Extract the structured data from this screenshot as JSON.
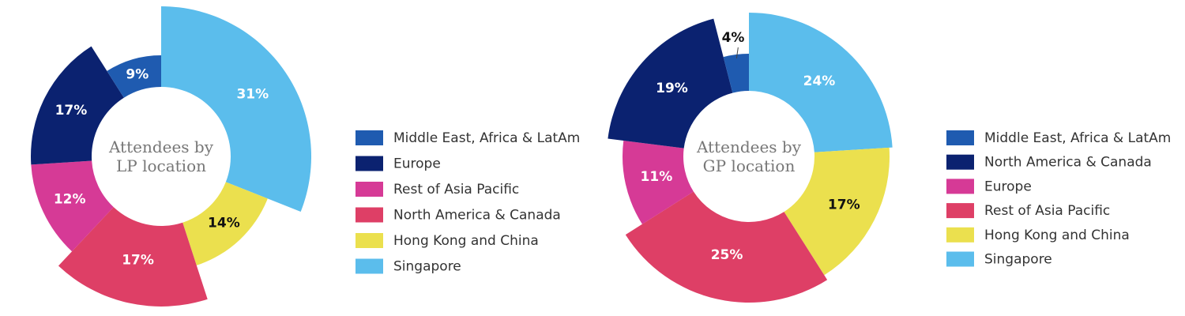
{
  "chart_data": [
    {
      "type": "pie",
      "variant": "variable-radius donut",
      "center_title": [
        "Attendees by",
        "LP location"
      ],
      "legend": [
        {
          "name": "Middle East, Africa & LatAm",
          "color": "#1f5bb0"
        },
        {
          "name": "Europe",
          "color": "#0b2270"
        },
        {
          "name": "Rest of Asia Pacific",
          "color": "#d63a96"
        },
        {
          "name": "North America & Canada",
          "color": "#de3f66"
        },
        {
          "name": "Hong Kong and China",
          "color": "#ebe04e"
        },
        {
          "name": "Singapore",
          "color": "#5bbdec"
        }
      ],
      "slices": [
        {
          "name": "Singapore",
          "value": 31,
          "label": "31%",
          "color": "#5bbdec"
        },
        {
          "name": "Hong Kong and China",
          "value": 14,
          "label": "14%",
          "color": "#ebe04e"
        },
        {
          "name": "North America & Canada",
          "value": 17,
          "label": "17%",
          "color": "#de3f66"
        },
        {
          "name": "Rest of Asia Pacific",
          "value": 12,
          "label": "12%",
          "color": "#d63a96"
        },
        {
          "name": "Europe",
          "value": 17,
          "label": "17%",
          "color": "#0b2270"
        },
        {
          "name": "Middle East, Africa & LatAm",
          "value": 9,
          "label": "9%",
          "color": "#1f5bb0"
        }
      ]
    },
    {
      "type": "pie",
      "variant": "variable-radius donut",
      "center_title": [
        "Attendees by",
        "GP location"
      ],
      "legend": [
        {
          "name": "Middle East, Africa & LatAm",
          "color": "#1f5bb0"
        },
        {
          "name": "North America & Canada",
          "color": "#0b2270"
        },
        {
          "name": "Europe",
          "color": "#d63a96"
        },
        {
          "name": "Rest of Asia Pacific",
          "color": "#de3f66"
        },
        {
          "name": "Hong Kong and China",
          "color": "#ebe04e"
        },
        {
          "name": "Singapore",
          "color": "#5bbdec"
        }
      ],
      "slices": [
        {
          "name": "Singapore",
          "value": 24,
          "label": "24%",
          "color": "#5bbdec"
        },
        {
          "name": "Hong Kong and China",
          "value": 17,
          "label": "17%",
          "color": "#ebe04e"
        },
        {
          "name": "Rest of Asia Pacific",
          "value": 25,
          "label": "25%",
          "color": "#de3f66"
        },
        {
          "name": "Europe",
          "value": 11,
          "label": "11%",
          "color": "#d63a96"
        },
        {
          "name": "North America & Canada",
          "value": 19,
          "label": "19%",
          "color": "#0b2270"
        },
        {
          "name": "Middle East, Africa & LatAm",
          "value": 4,
          "label": "4%",
          "color": "#1f5bb0"
        }
      ]
    }
  ]
}
